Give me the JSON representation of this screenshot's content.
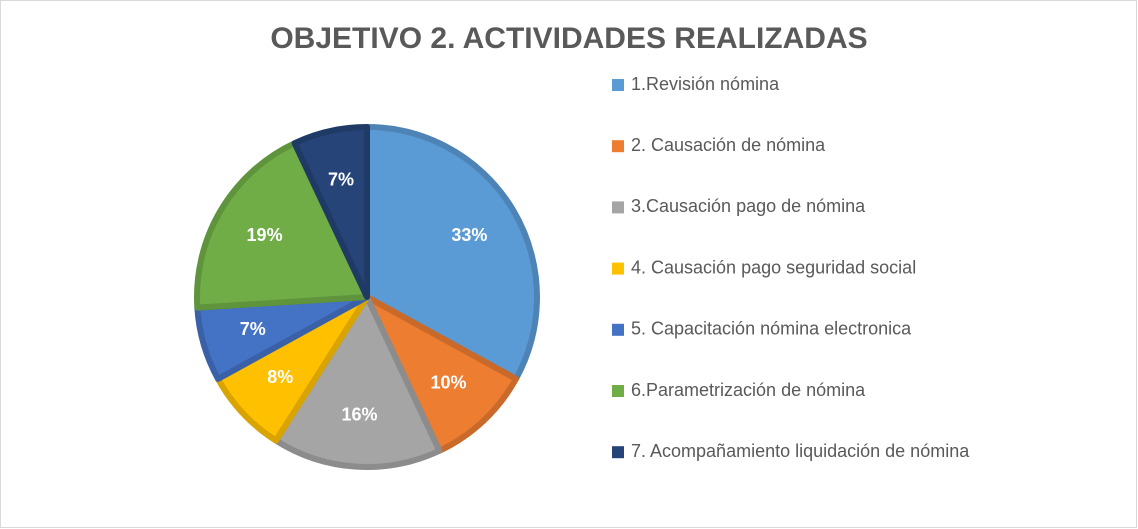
{
  "chart_data": {
    "type": "pie",
    "title": "OBJETIVO 2. ACTIVIDADES REALIZADAS",
    "categories": [
      "1.Revisión nómina",
      "2. Causación de nómina",
      "3.Causación pago de nómina",
      "4. Causación pago seguridad social",
      "5. Capacitación nómina electronica",
      "6.Parametrización de nómina",
      "7. Acompañamiento liquidación de nómina"
    ],
    "values": [
      33,
      10,
      16,
      8,
      7,
      19,
      7
    ],
    "value_labels": [
      "33%",
      "10%",
      "16%",
      "8%",
      "7%",
      "19%",
      "7%"
    ],
    "colors": [
      "#5b9bd5",
      "#ed7d31",
      "#a5a5a5",
      "#ffc000",
      "#4472c4",
      "#70ad47",
      "#264478"
    ],
    "legend": "right"
  }
}
